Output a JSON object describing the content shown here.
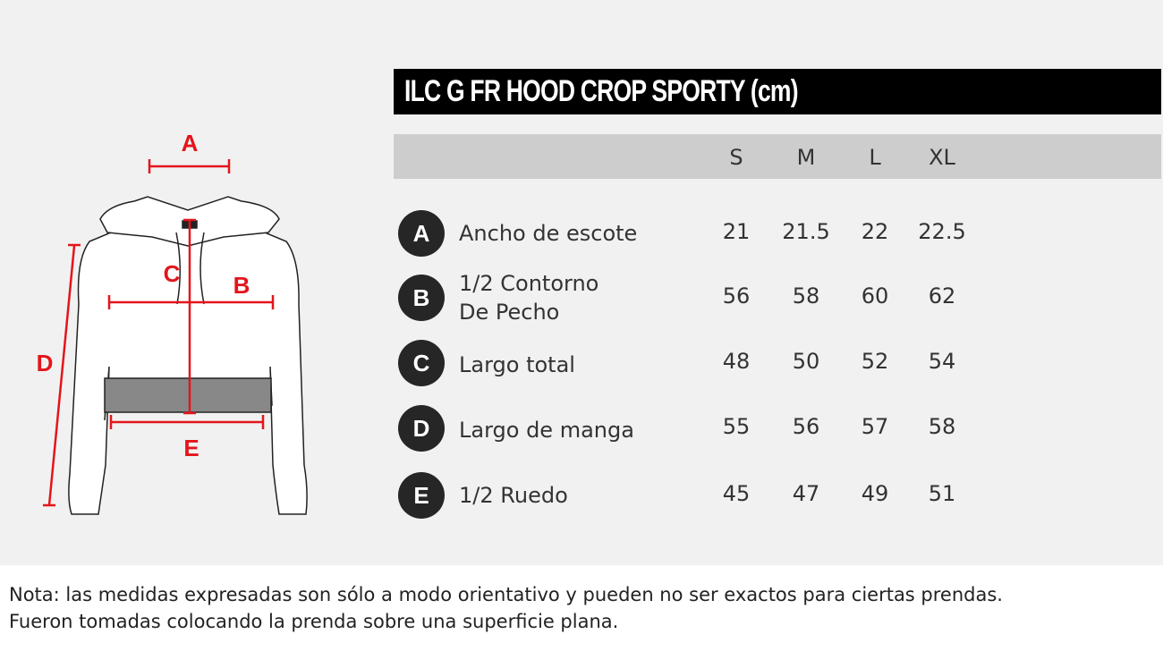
{
  "title": "ILC G FR HOOD CROP SPORTY (cm)",
  "sizes": [
    "S",
    "M",
    "L",
    "XL"
  ],
  "rows": [
    {
      "key": "A",
      "label": "Ancho de escote",
      "values": [
        "21",
        "21.5",
        "22",
        "22.5"
      ]
    },
    {
      "key": "B",
      "label": "1/2 Contorno De Pecho",
      "values": [
        "56",
        "58",
        "60",
        "62"
      ]
    },
    {
      "key": "C",
      "label": "Largo total",
      "values": [
        "48",
        "50",
        "52",
        "54"
      ]
    },
    {
      "key": "D",
      "label": "Largo de manga",
      "values": [
        "55",
        "56",
        "57",
        "58"
      ]
    },
    {
      "key": "E",
      "label": "1/2 Ruedo",
      "values": [
        "45",
        "47",
        "49",
        "51"
      ]
    }
  ],
  "diagram_labels": [
    "A",
    "B",
    "C",
    "D",
    "E"
  ],
  "note": [
    "Nota: las medidas expresadas son sólo a modo orientativo y pueden no ser exactos para ciertas prendas.",
    "Fueron tomadas colocando la prenda sobre una superficie plana."
  ],
  "colors": {
    "measure": "#e3151b",
    "title_bg": "#000000",
    "header_bg": "#cdcdcd",
    "badge": "#262626"
  }
}
